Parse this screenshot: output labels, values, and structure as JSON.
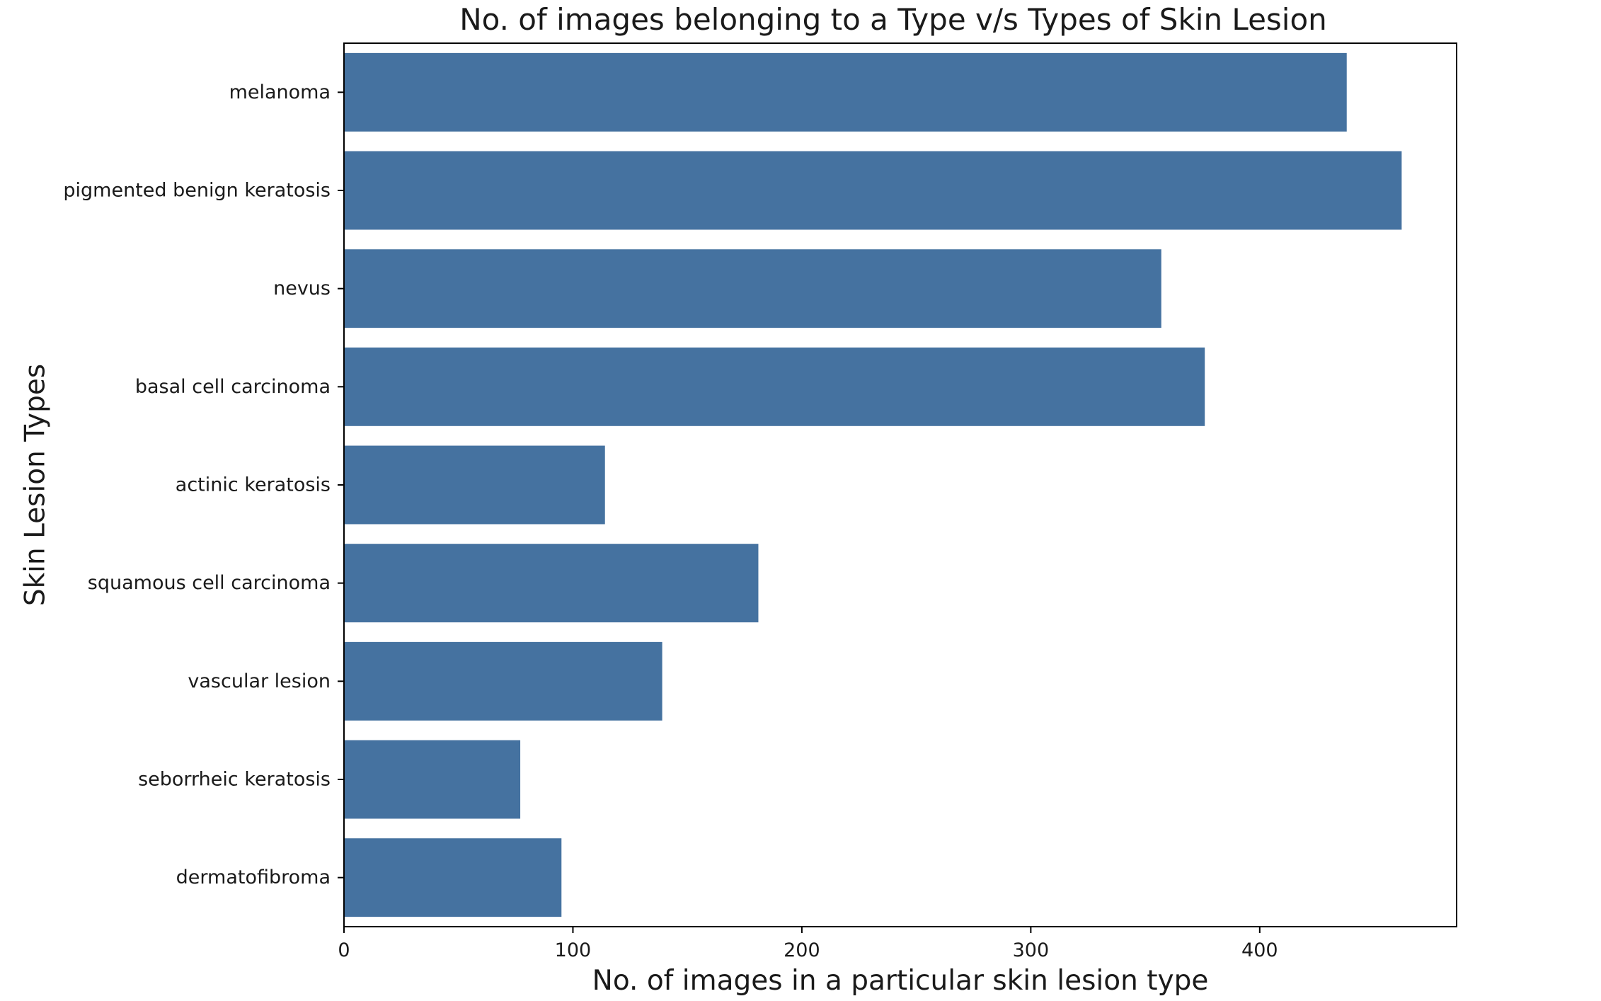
{
  "chart_data": {
    "type": "bar",
    "orientation": "horizontal",
    "title": "No. of images belonging to a Type v/s Types of Skin Lesion",
    "xlabel": "No. of images in a particular skin lesion type",
    "ylabel": "Skin Lesion Types",
    "categories": [
      "melanoma",
      "pigmented benign keratosis",
      "nevus",
      "basal cell carcinoma",
      "actinic keratosis",
      "squamous cell carcinoma",
      "vascular lesion",
      "seborrheic keratosis",
      "dermatofibroma"
    ],
    "values": [
      438,
      462,
      357,
      376,
      114,
      181,
      139,
      77,
      95
    ],
    "xlim": [
      0,
      486
    ],
    "xticks": [
      0,
      100,
      200,
      300,
      400
    ],
    "grid": false,
    "bar_color": "#4572a0"
  }
}
